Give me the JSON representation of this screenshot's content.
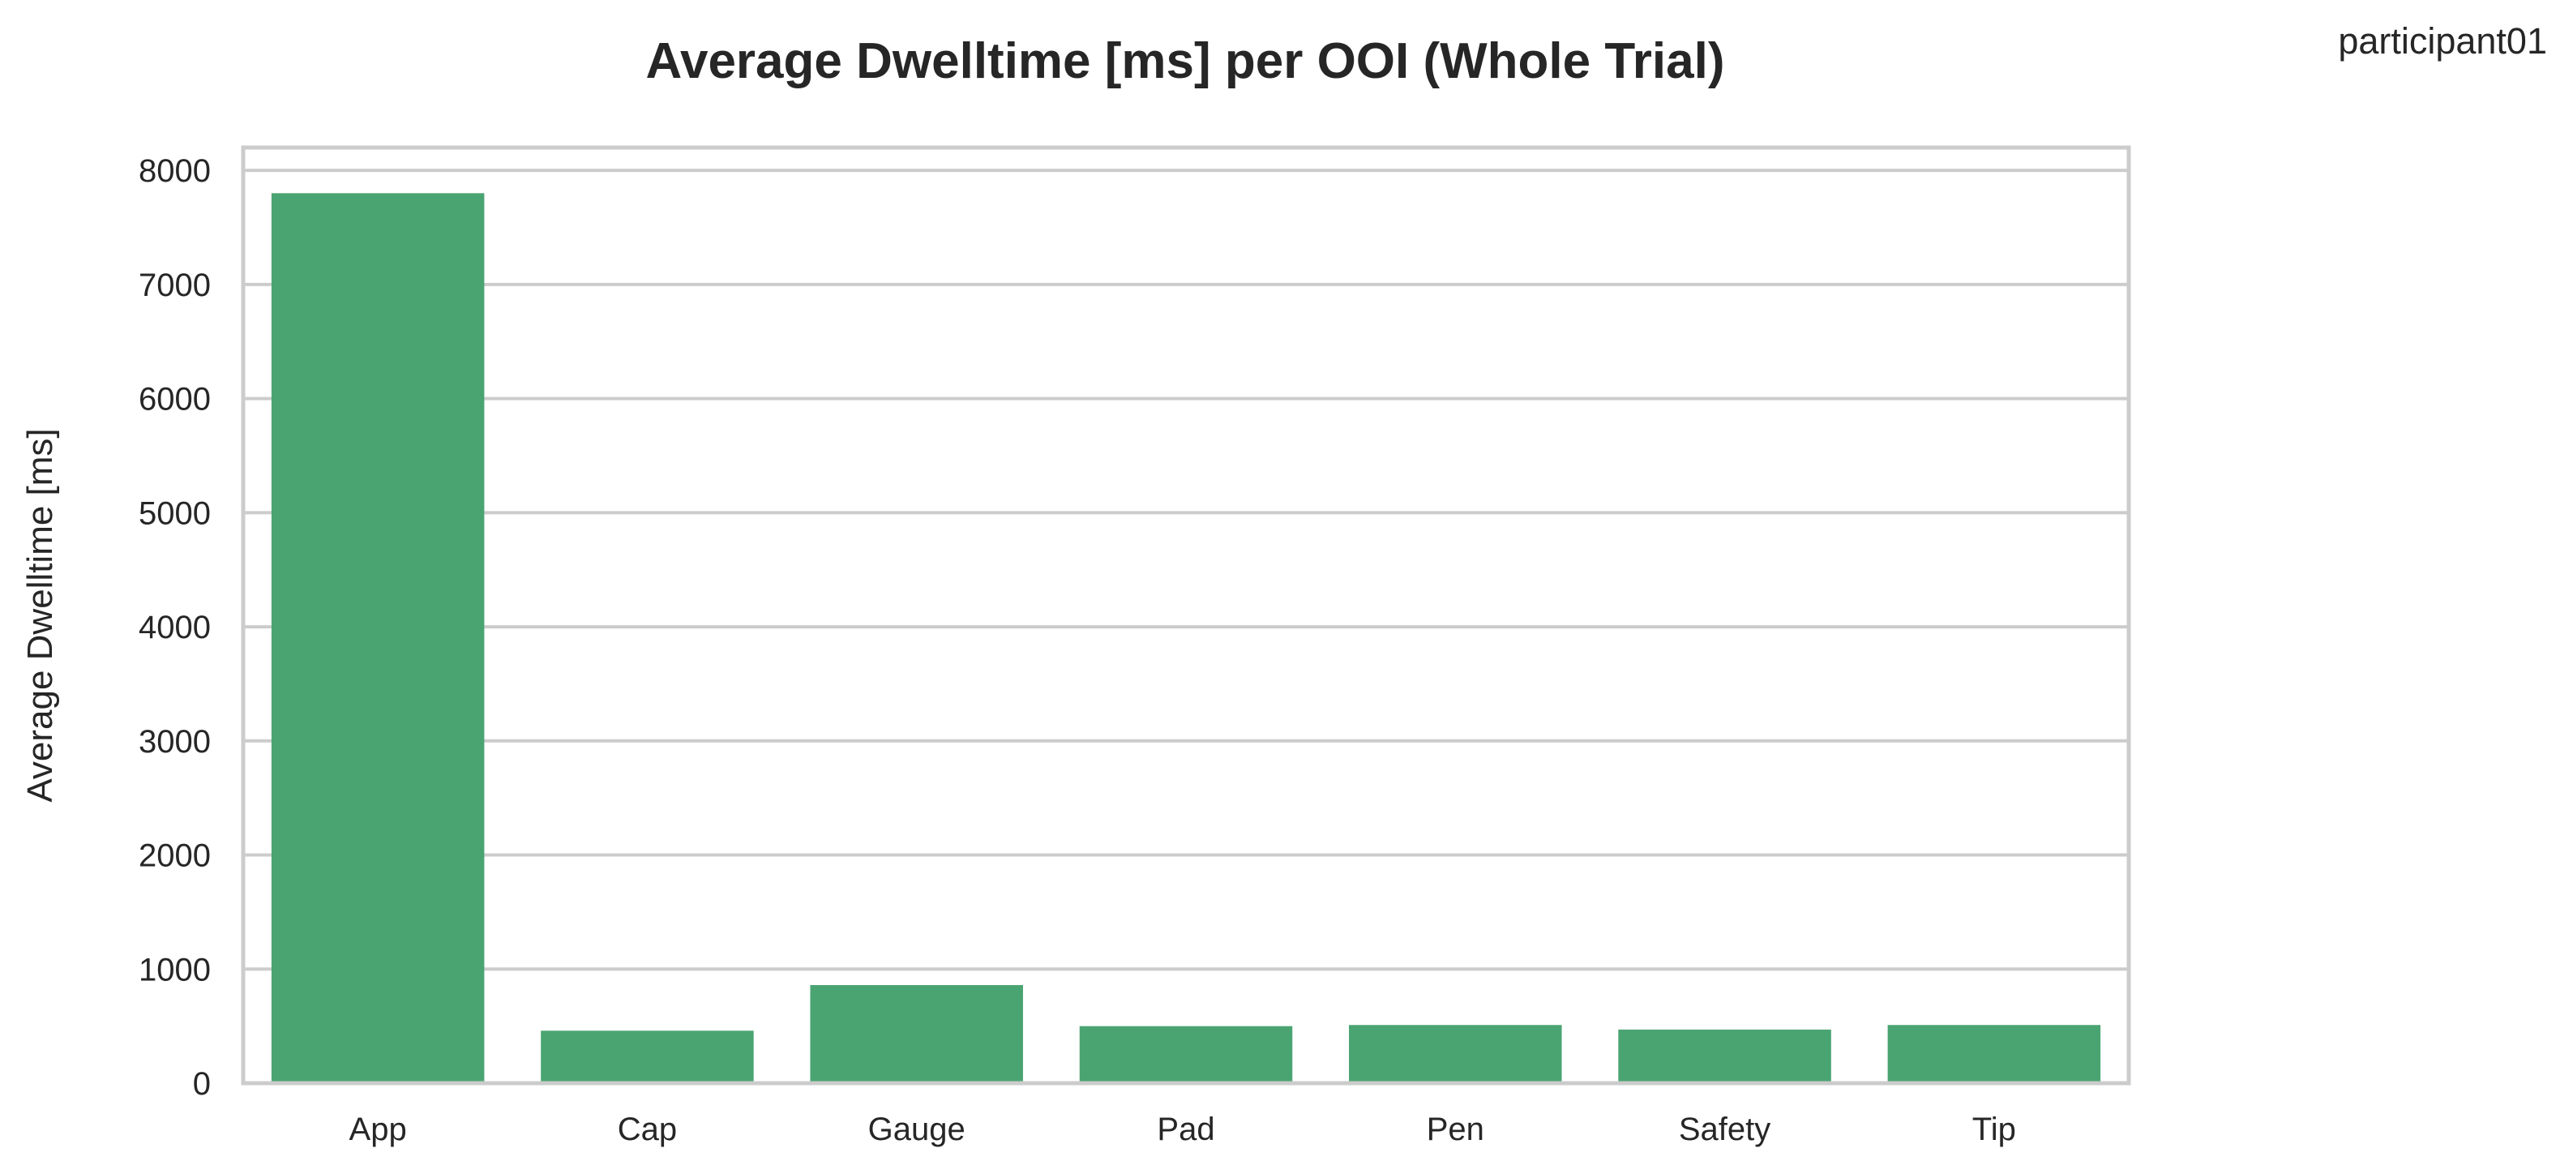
{
  "chart_data": {
    "type": "bar",
    "title": "Average Dwelltime [ms] per OOI (Whole Trial)",
    "corner_label": "participant01",
    "xlabel": "",
    "ylabel": "Average Dwelltime [ms]",
    "categories": [
      "App",
      "Cap",
      "Gauge",
      "Pad",
      "Pen",
      "Safety",
      "Tip"
    ],
    "values": [
      7800,
      460,
      860,
      500,
      510,
      470,
      510
    ],
    "ylim": [
      0,
      8200
    ],
    "yticks": [
      0,
      1000,
      2000,
      3000,
      4000,
      5000,
      6000,
      7000,
      8000
    ],
    "grid": true,
    "bar_color": "#4aa472",
    "grid_color": "#cccccc",
    "frame_color": "#cccccc"
  }
}
